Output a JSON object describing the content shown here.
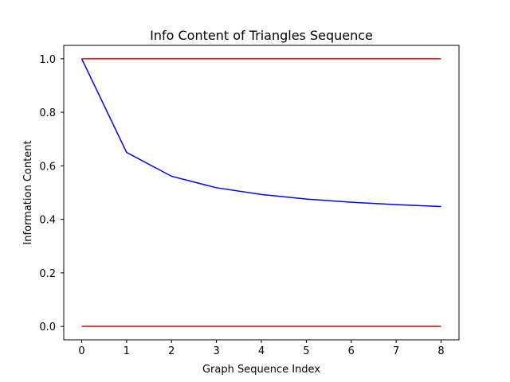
{
  "chart_data": {
    "type": "line",
    "title": "Info Content of Triangles Sequence",
    "xlabel": "Graph Sequence Index",
    "ylabel": "Information Content",
    "xlim": [
      -0.4,
      8.4
    ],
    "ylim": [
      -0.05,
      1.05
    ],
    "x_ticks": [
      0,
      1,
      2,
      3,
      4,
      5,
      6,
      7,
      8
    ],
    "x_tick_labels": [
      "0",
      "1",
      "2",
      "3",
      "4",
      "5",
      "6",
      "7",
      "8"
    ],
    "y_ticks": [
      0.0,
      0.2,
      0.4,
      0.6,
      0.8,
      1.0
    ],
    "y_tick_labels": [
      "0.0",
      "0.2",
      "0.4",
      "0.6",
      "0.8",
      "1.0"
    ],
    "grid": false,
    "legend": "none",
    "series": [
      {
        "color": "#0000ff",
        "x": [
          0,
          1,
          2,
          3,
          4,
          5,
          6,
          7,
          8
        ],
        "y": [
          1.0,
          0.65,
          0.561,
          0.518,
          0.493,
          0.476,
          0.464,
          0.455,
          0.448
        ]
      },
      {
        "color": "#ff0000",
        "x": [
          0,
          8
        ],
        "y": [
          1.0,
          1.0
        ]
      },
      {
        "color": "#ff0000",
        "x": [
          0,
          8
        ],
        "y": [
          0.0,
          0.0
        ]
      }
    ]
  }
}
